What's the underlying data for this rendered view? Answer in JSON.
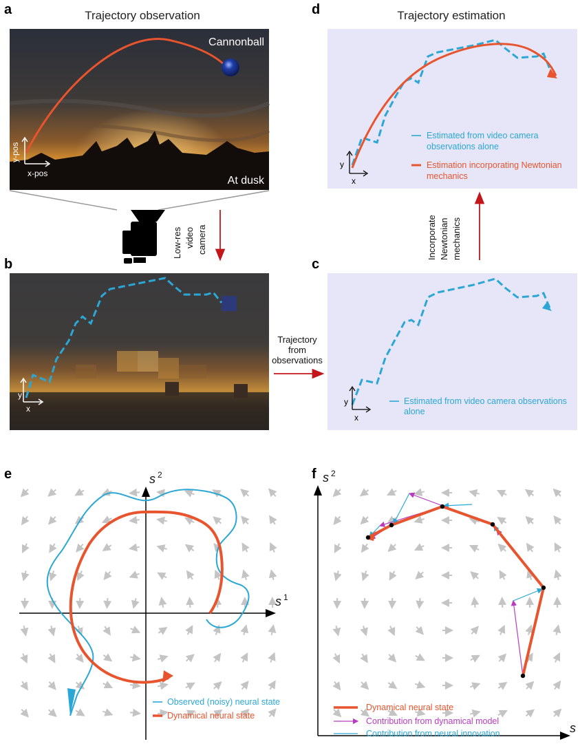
{
  "panels": {
    "a": {
      "label": "a",
      "title": "Trajectory observation",
      "object_label": "Cannonball",
      "scene_label": "At dusk",
      "y_axis": "y-pos",
      "x_axis": "x-pos"
    },
    "b": {
      "label": "b",
      "y_axis": "y",
      "x_axis": "x"
    },
    "camera": {
      "lines": [
        "Low-res",
        "video",
        "camera"
      ]
    },
    "arrow_bc": {
      "lines": [
        "Trajectory",
        "from",
        "observations"
      ]
    },
    "c": {
      "label": "c",
      "y_axis": "y",
      "x_axis": "x",
      "legend_line1": "Estimated from video camera observations",
      "legend_line2": "alone"
    },
    "arrow_cd": {
      "lines": [
        "Incorporate",
        "Newtonian",
        "mechanics"
      ]
    },
    "d": {
      "label": "d",
      "title": "Trajectory estimation",
      "y_axis": "y",
      "x_axis": "x",
      "legend1_line1": "Estimated from video camera",
      "legend1_line2": "observations alone",
      "legend2_line1": "Estimation incorporating Newtonian",
      "legend2_line2": "mechanics"
    },
    "e": {
      "label": "e",
      "y_axis": "s",
      "y_sup": "2",
      "x_axis": "s",
      "x_sup": "1",
      "legend1": "Observed (noisy) neural state",
      "legend2": "Dynamical neural state"
    },
    "f": {
      "label": "f",
      "y_axis": "s",
      "y_sup": "2",
      "x_axis": "s",
      "legend1": "Dynamical neural state",
      "legend2": "Contribution from dynamical model",
      "legend3": "Contribution from neural innovation"
    }
  },
  "colors": {
    "orange": "#e8542d",
    "blue": "#2ba7d6",
    "magenta": "#b93cc0",
    "panel_bg": "#e6e6f8",
    "red_arrow": "#c2161b",
    "field_arrow": "#c4c4c4"
  }
}
